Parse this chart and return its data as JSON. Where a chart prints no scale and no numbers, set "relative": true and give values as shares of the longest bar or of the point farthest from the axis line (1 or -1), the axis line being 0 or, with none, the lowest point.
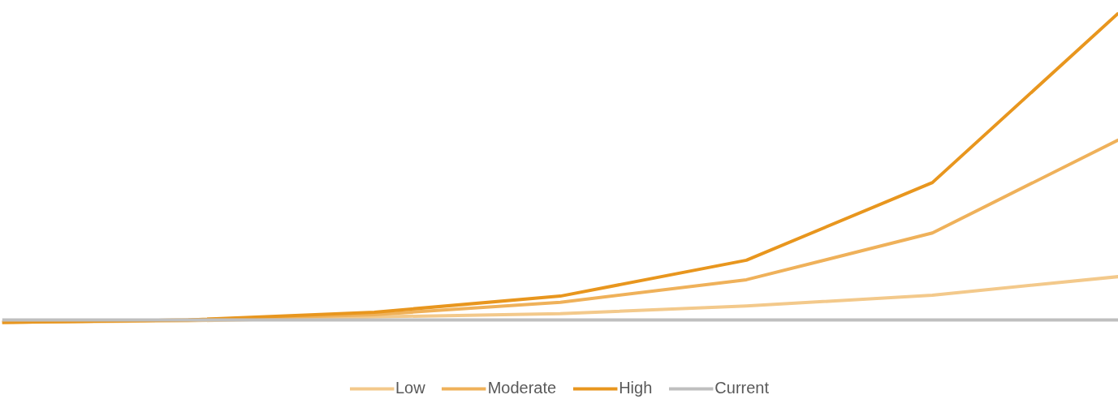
{
  "chart_data": {
    "type": "line",
    "relative": true,
    "categories": [
      null,
      null,
      null,
      null,
      null,
      null,
      null
    ],
    "series": [
      {
        "name": "Low",
        "color": "#f3c98b",
        "values": [
          0,
          0.005,
          0.018,
          0.028,
          0.053,
          0.088,
          0.148
        ]
      },
      {
        "name": "Moderate",
        "color": "#efb15a",
        "values": [
          0,
          0.008,
          0.025,
          0.065,
          0.138,
          0.289,
          0.59
        ]
      },
      {
        "name": "High",
        "color": "#e8961e",
        "values": [
          0,
          0.008,
          0.033,
          0.085,
          0.201,
          0.452,
          1
        ]
      },
      {
        "name": "Current",
        "color": "#bfbfbf",
        "values": [
          0.008,
          0.008,
          0.008,
          0.008,
          0.008,
          0.008,
          0.008
        ]
      }
    ],
    "legend": "bottom",
    "line_style": "solid"
  }
}
